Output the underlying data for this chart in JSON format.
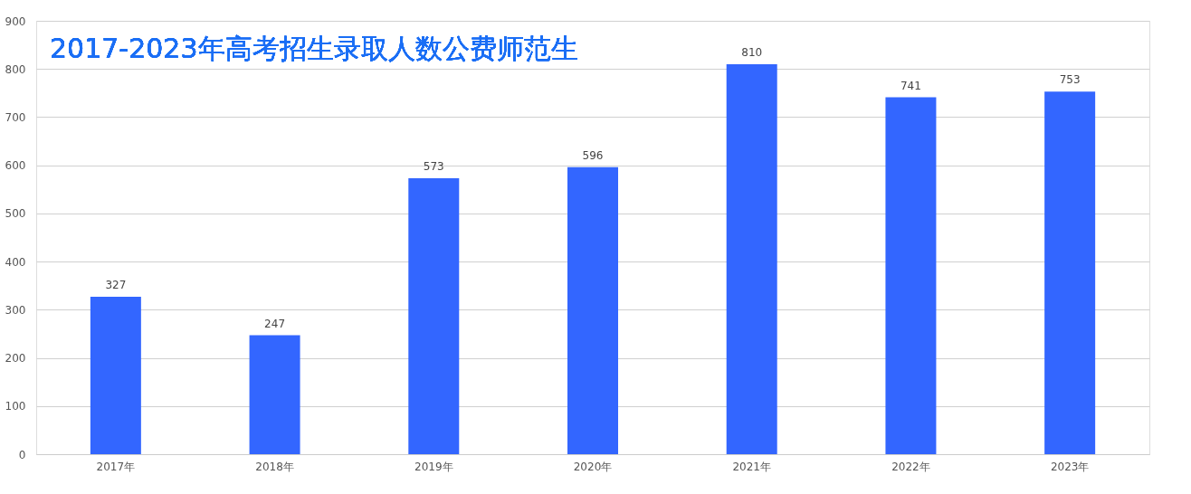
{
  "chart_data": {
    "type": "bar",
    "title": "2017-2023年高考招生录取人数公费师范生",
    "categories": [
      "2017年",
      "2018年",
      "2019年",
      "2020年",
      "2021年",
      "2022年",
      "2023年"
    ],
    "values": [
      327,
      247,
      573,
      596,
      810,
      741,
      753
    ],
    "color": "#3366ff",
    "ylim": [
      0,
      900
    ],
    "yticks": [
      0,
      100,
      200,
      300,
      400,
      500,
      600,
      700,
      800,
      900
    ],
    "grid": "y",
    "data_labels": true
  }
}
